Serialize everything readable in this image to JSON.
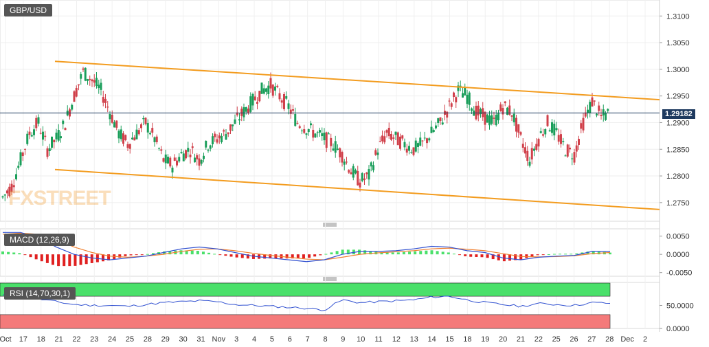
{
  "main": {
    "symbol": "GBP/USD",
    "last_price": "1.29182",
    "watermark": "FXSTREET",
    "y_ticks": [
      "1.3100",
      "1.3050",
      "1.3000",
      "1.2950",
      "1.2900",
      "1.2850",
      "1.2800",
      "1.2750"
    ]
  },
  "macd": {
    "label": "MACD (12,26,9)",
    "y_ticks": [
      "0.0050",
      "0.0000",
      "-0.0050"
    ]
  },
  "rsi": {
    "label": "RSI (14,70,30,1)",
    "y_ticks": [
      "50.0000",
      "0.0000"
    ]
  },
  "x_ticks": [
    "Oct",
    "17",
    "18",
    "21",
    "22",
    "23",
    "24",
    "25",
    "28",
    "29",
    "30",
    "31",
    "Nov",
    "3",
    "4",
    "5",
    "6",
    "7",
    "8",
    "9",
    "10",
    "11",
    "12",
    "13",
    "14",
    "15",
    "18",
    "19",
    "20",
    "21",
    "22",
    "25",
    "26",
    "27",
    "28",
    "Dec",
    "2"
  ],
  "colors": {
    "up": "#1a9e5a",
    "down": "#d0404a",
    "channel": "#f39c1f",
    "macd_line": "#3050d0",
    "signal_line": "#f08030",
    "rsi_line": "#3050d0",
    "overbought_zone": "#4ae06a",
    "oversold_zone": "#f47a7a"
  },
  "chart_data": [
    {
      "type": "candlestick",
      "title": "GBP/USD",
      "ylim": [
        1.2715,
        1.313
      ],
      "last": 1.29182,
      "channel_upper": [
        [
          1.3015,
          1.2943
        ]
      ],
      "channel_lower": [
        [
          1.2812,
          1.2737
        ]
      ],
      "close_path": [
        1.276,
        1.278,
        1.283,
        1.288,
        1.29,
        1.285,
        1.287,
        1.29,
        1.295,
        1.2995,
        1.298,
        1.296,
        1.292,
        1.288,
        1.286,
        1.288,
        1.29,
        1.287,
        1.283,
        1.282,
        1.284,
        1.285,
        1.283,
        1.286,
        1.287,
        1.288,
        1.29,
        1.292,
        1.294,
        1.296,
        1.297,
        1.295,
        1.293,
        1.29,
        1.289,
        1.288,
        1.287,
        1.286,
        1.284,
        1.281,
        1.279,
        1.28,
        1.285,
        1.288,
        1.287,
        1.286,
        1.285,
        1.286,
        1.288,
        1.29,
        1.293,
        1.296,
        1.295,
        1.292,
        1.291,
        1.29,
        1.293,
        1.292,
        1.287,
        1.283,
        1.287,
        1.29,
        1.288,
        1.285,
        1.284,
        1.29,
        1.294,
        1.291,
        1.2918
      ]
    },
    {
      "type": "line",
      "title": "MACD (12,26,9)",
      "ylim": [
        -0.006,
        0.007
      ],
      "series": [
        {
          "name": "MACD",
          "values": [
            0.006,
            0.006,
            0.0045,
            0.002,
            0.0,
            -0.001,
            -0.0015,
            -0.001,
            -0.0005,
            0.0005,
            0.0015,
            0.002,
            0.0015,
            0.0005,
            -0.0005,
            -0.001,
            -0.0015,
            -0.002,
            -0.0015,
            0.0,
            0.0008,
            0.0008,
            0.001,
            0.0015,
            0.0022,
            0.002,
            0.001,
            0.0005,
            -0.001,
            -0.0015,
            -0.0008,
            -0.0005,
            -0.0003,
            0.0008,
            0.0008
          ]
        },
        {
          "name": "Signal",
          "values": [
            0.0055,
            0.0058,
            0.0055,
            0.004,
            0.002,
            0.0005,
            -0.0005,
            -0.0008,
            -0.0005,
            0.0,
            0.0008,
            0.0014,
            0.0015,
            0.001,
            0.0003,
            -0.0003,
            -0.0008,
            -0.0013,
            -0.0015,
            -0.0008,
            0.0,
            0.0004,
            0.0007,
            0.001,
            0.0015,
            0.0017,
            0.0014,
            0.001,
            0.0002,
            -0.0006,
            -0.0007,
            -0.0006,
            -0.0004,
            0.0002,
            0.0005
          ]
        }
      ]
    },
    {
      "type": "line",
      "title": "RSI (14,70,30,1)",
      "ylim": [
        0,
        100
      ],
      "series": [
        {
          "name": "RSI",
          "values": [
            72,
            70,
            64,
            58,
            52,
            50,
            50,
            48,
            52,
            56,
            58,
            60,
            58,
            52,
            50,
            48,
            46,
            44,
            40,
            62,
            56,
            58,
            60,
            62,
            68,
            70,
            62,
            56,
            52,
            48,
            54,
            52,
            50,
            56,
            55
          ]
        }
      ]
    }
  ]
}
